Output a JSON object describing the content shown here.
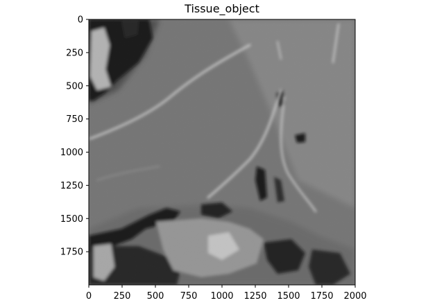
{
  "figure": {
    "title": "Tissue_object",
    "image": {
      "description_icon": "grayscale-tissue-microscopy-image",
      "width_units": 2000,
      "height_units": 2000
    },
    "x_axis": {
      "range": [
        0,
        2000
      ],
      "tick_labels": [
        "0",
        "250",
        "500",
        "750",
        "1000",
        "1250",
        "1500",
        "1750",
        "2000"
      ]
    },
    "y_axis": {
      "range": [
        0,
        2000
      ],
      "inverted": true,
      "tick_labels": [
        "0",
        "250",
        "500",
        "750",
        "1000",
        "1250",
        "1500",
        "1750"
      ]
    },
    "colors": {
      "background": "#ffffff",
      "axis": "#000000",
      "tissue_mid": "#7a7a7a",
      "tissue_dark": "#2a2a2a",
      "tissue_light": "#c8c8c8"
    }
  }
}
